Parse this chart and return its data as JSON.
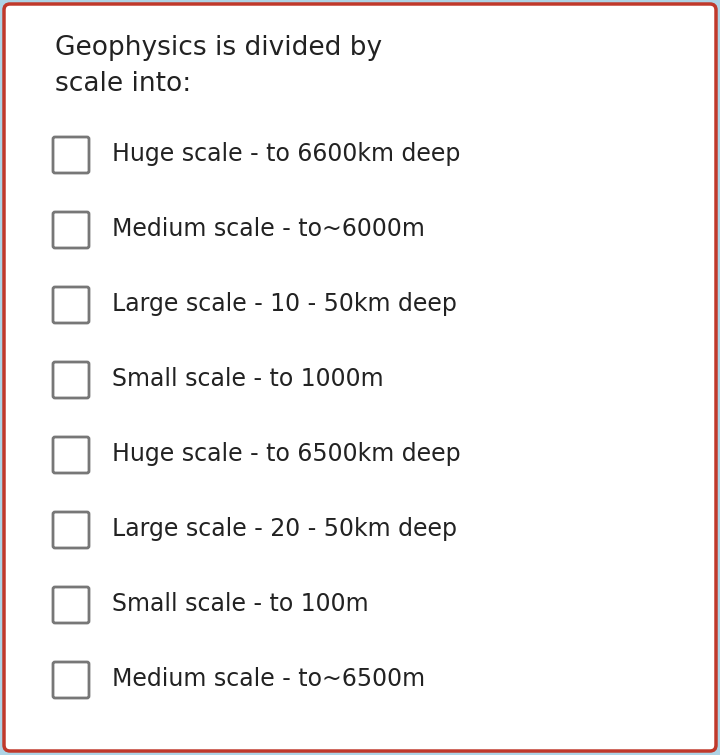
{
  "title": "Geophysics is divided by\nscale into:",
  "bg_outer": "#aed4e6",
  "bg_card": "#ffffff",
  "border_color": "#c0392b",
  "text_color": "#222222",
  "checkbox_border": "#777777",
  "options": [
    "Huge scale - to 6600km deep",
    "Medium scale - to~6000m",
    "Large scale - 10 - 50km deep",
    "Small scale - to 1000m",
    "Huge scale - to 6500km deep",
    "Large scale - 20 - 50km deep",
    "Small scale - to 100m",
    "Medium scale - to~6500m"
  ],
  "title_fontsize": 19,
  "option_fontsize": 17,
  "fig_width": 7.2,
  "fig_height": 7.55
}
